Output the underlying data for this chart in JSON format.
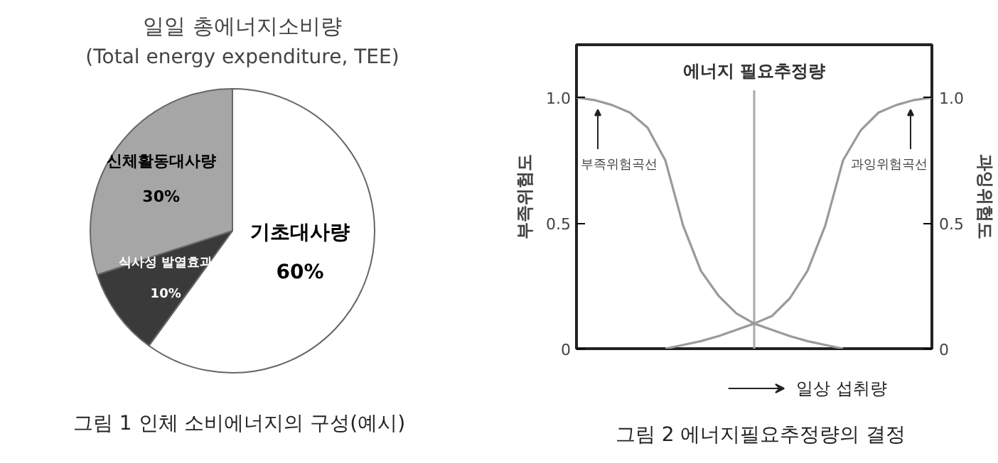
{
  "chart_data": [
    {
      "type": "pie",
      "title": "일일 총에너지소비량",
      "subtitle": "(Total energy expenditure, TEE)",
      "categories": [
        "기초대사량",
        "식사성 발열효과",
        "신체활동대사량"
      ],
      "values": [
        60,
        10,
        30
      ],
      "colors": [
        "#ffffff",
        "#3a3a3a",
        "#a6a6a6"
      ],
      "value_labels": [
        "60%",
        "10%",
        "30%"
      ],
      "annotations": [
        "그림 1  인체 소비에너지의 구성(예시)"
      ]
    },
    {
      "type": "line",
      "categories": [
        null,
        null,
        null,
        null,
        null,
        null,
        null,
        null,
        null,
        null,
        null,
        null,
        null,
        null,
        null,
        null,
        null,
        null,
        null,
        null,
        null
      ],
      "series": [
        {
          "name": "부족위험곡선",
          "color": "#9a9a9a",
          "values": [
            1.0,
            0.99,
            0.97,
            0.94,
            0.88,
            0.75,
            0.49,
            0.31,
            0.21,
            0.14,
            0.1,
            0.075,
            0.05,
            0.03,
            0.015,
            0,
            null,
            null,
            null,
            null,
            null
          ]
        },
        {
          "name": "과잉위험곡선",
          "color": "#9a9a9a",
          "axis": "y2",
          "values": [
            null,
            null,
            null,
            null,
            null,
            0,
            0.015,
            0.03,
            0.05,
            0.075,
            0.1,
            0.13,
            0.2,
            0.31,
            0.49,
            0.75,
            0.87,
            0.94,
            0.97,
            0.99,
            1.0
          ]
        }
      ],
      "ylabel": "부족위험도",
      "y2label": "과잉위험도",
      "xlabel": "일상 섭취량",
      "ylim": [
        0,
        1.21
      ],
      "yticks": [
        0,
        0.5,
        {
          "value": 1,
          "label": "1.0"
        }
      ],
      "y2lim": [
        0,
        1.21
      ],
      "y2ticks": [
        0,
        0.5,
        {
          "value": 1,
          "label": "1.0"
        }
      ],
      "tick_labels": "y",
      "annotations": [
        "에너지 필요추정량",
        "그림 2  에너지필요추정량의 결정"
      ]
    }
  ]
}
